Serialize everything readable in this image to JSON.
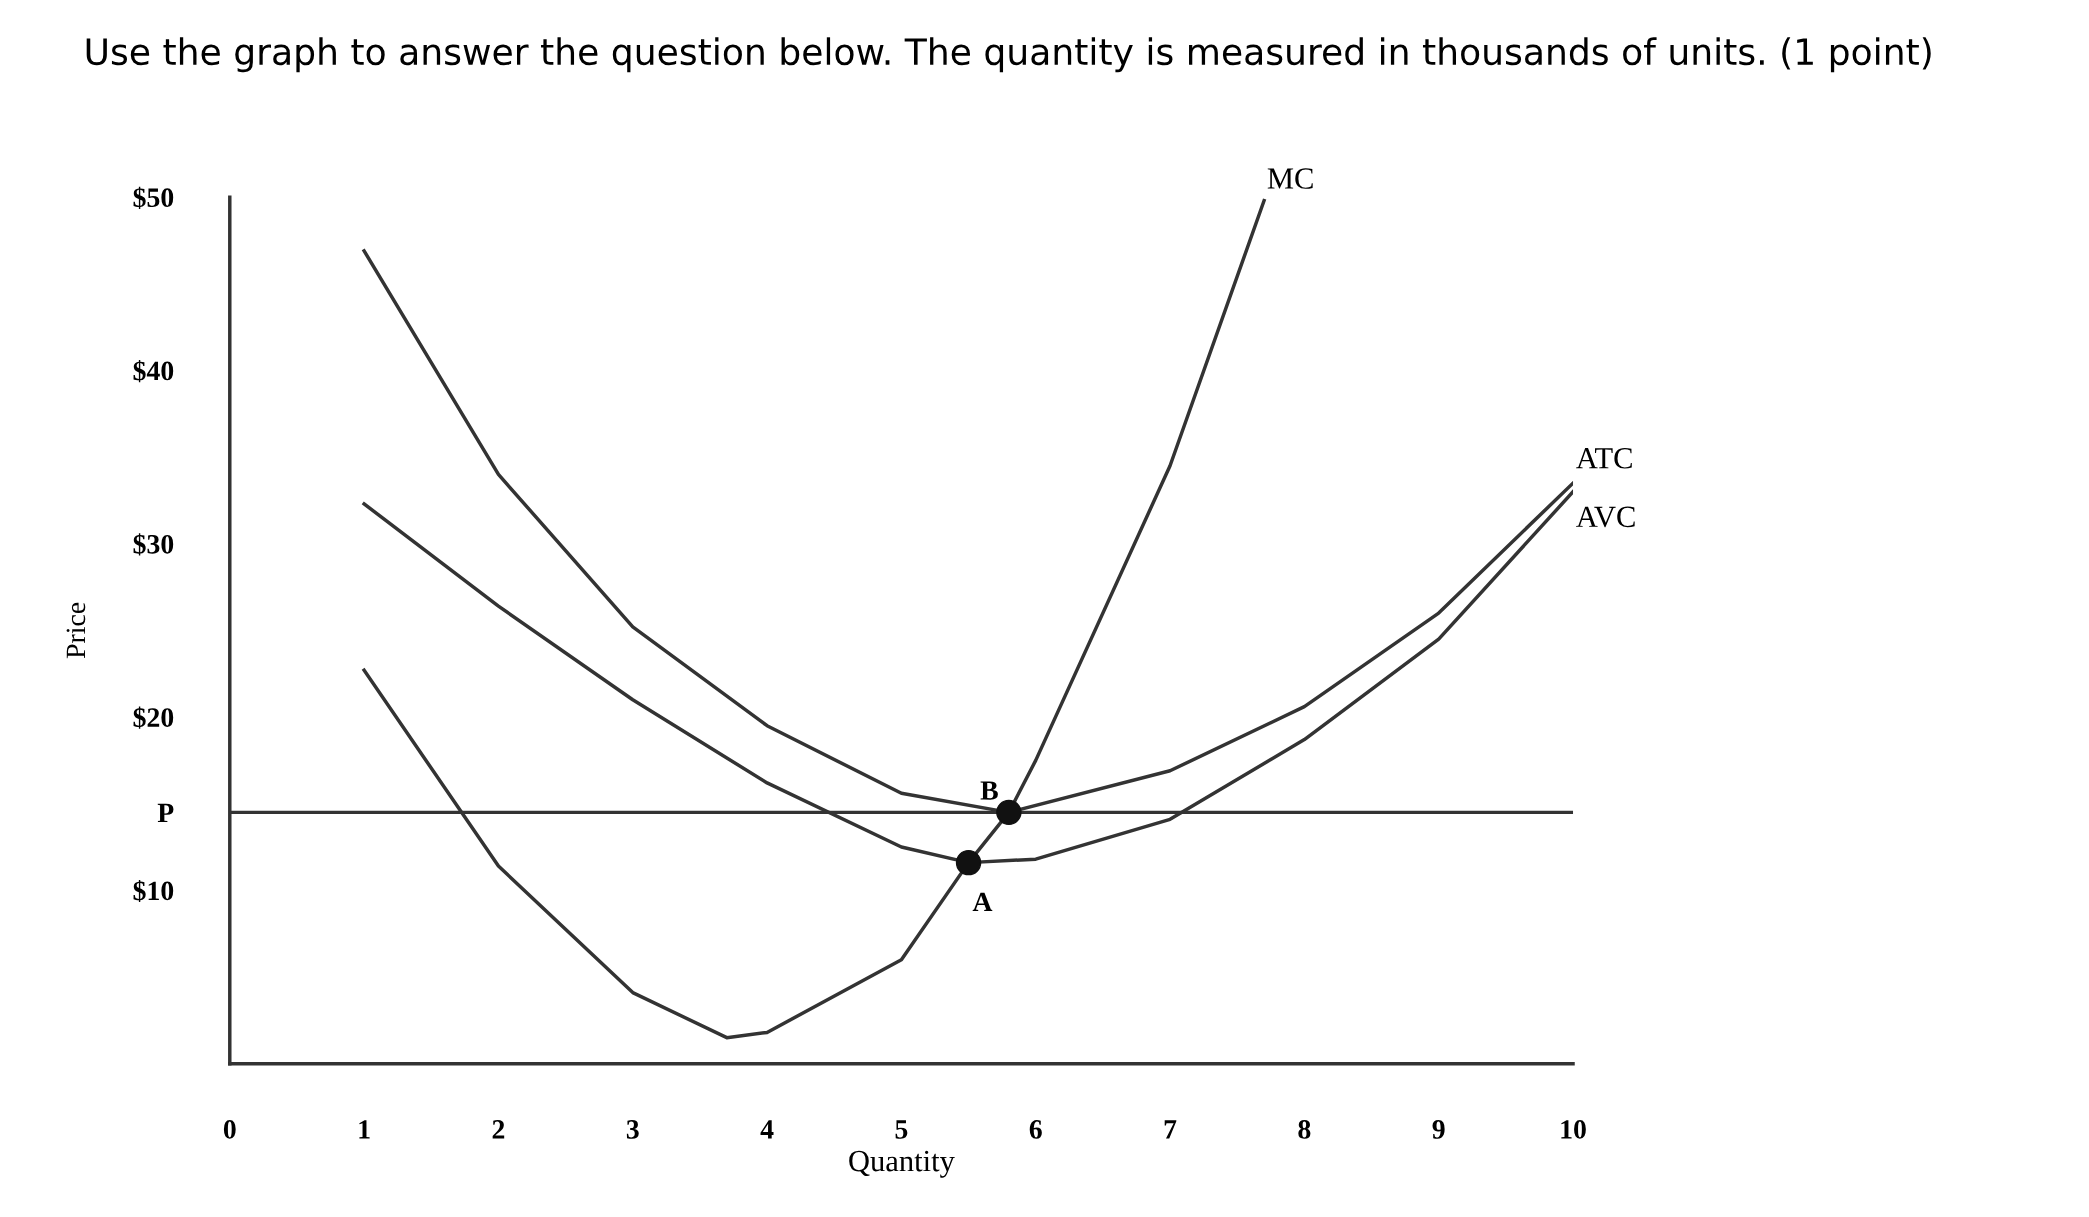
{
  "chart_data": {
    "type": "line",
    "title": "Use the graph to answer the question below. The quantity is measured in thousands of units. (1 point)",
    "xlabel": "Quantity",
    "ylabel": "Price",
    "xlim": [
      0,
      10
    ],
    "ylim": [
      0,
      50
    ],
    "xticks": [
      0,
      1,
      2,
      3,
      4,
      5,
      6,
      7,
      8,
      9,
      10
    ],
    "yticks": [
      {
        "value": 10,
        "label": "$10"
      },
      {
        "value": 14.5,
        "label": "P"
      },
      {
        "value": 20,
        "label": "$20"
      },
      {
        "value": 30,
        "label": "$30"
      },
      {
        "value": 40,
        "label": "$40"
      },
      {
        "value": 50,
        "label": "$50"
      }
    ],
    "series": [
      {
        "name": "MC",
        "color": "#333333",
        "x": [
          1,
          2,
          3,
          3.7,
          4,
          5,
          5.5,
          5.8,
          6,
          7,
          7.7
        ],
        "values": [
          22.7,
          11.4,
          4.1,
          1.5,
          1.8,
          6,
          11.6,
          14.5,
          17.5,
          34.5,
          49.8
        ]
      },
      {
        "name": "ATC",
        "color": "#333333",
        "x": [
          1,
          2,
          3,
          4,
          5,
          5.8,
          7,
          8,
          9,
          10
        ],
        "values": [
          46.9,
          34,
          25.2,
          19.5,
          15.6,
          14.5,
          16.9,
          20.6,
          26,
          33.5
        ]
      },
      {
        "name": "AVC",
        "color": "#333333",
        "x": [
          1,
          2,
          3,
          4,
          5,
          5.5,
          6,
          7,
          8,
          9,
          10
        ],
        "values": [
          32.3,
          26.4,
          21,
          16.2,
          12.5,
          11.6,
          11.8,
          14.1,
          18.7,
          24.5,
          33
        ]
      },
      {
        "type": "scatter",
        "marker": "circle",
        "color": "#111111",
        "x": [
          5.5,
          5.8
        ],
        "values": [
          11.6,
          14.5
        ]
      }
    ],
    "ref_lines": [
      {
        "axis": "y",
        "value": 14.5,
        "color": "#333333"
      }
    ],
    "annotations": [
      {
        "text": "A",
        "x": 5.5,
        "y": 11.6
      },
      {
        "text": "B",
        "x": 5.8,
        "y": 14.5
      }
    ],
    "line_style": "solid",
    "grid": false,
    "legend": false
  }
}
